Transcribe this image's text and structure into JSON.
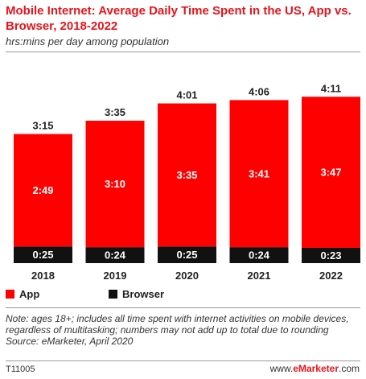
{
  "header": {
    "title": "Mobile Internet: Average Daily Time Spent in the US, App vs. Browser, 2018-2022",
    "subtitle": "hrs:mins per day among population"
  },
  "colors": {
    "app": "#ff0000",
    "browser": "#111111",
    "title": "#e8141b"
  },
  "chart_data": {
    "type": "bar",
    "stacked": true,
    "categories": [
      "2018",
      "2019",
      "2020",
      "2021",
      "2022"
    ],
    "series": [
      {
        "name": "Browser",
        "values": [
          25,
          24,
          25,
          24,
          23
        ],
        "labels": [
          "0:25",
          "0:24",
          "0:25",
          "0:24",
          "0:23"
        ]
      },
      {
        "name": "App",
        "values": [
          169,
          190,
          215,
          221,
          227
        ],
        "labels": [
          "2:49",
          "3:10",
          "3:35",
          "3:41",
          "3:47"
        ]
      }
    ],
    "totals": [
      195,
      215,
      241,
      246,
      251
    ],
    "total_labels": [
      "3:15",
      "3:35",
      "4:01",
      "4:06",
      "4:11"
    ],
    "unit": "minutes",
    "grid": false,
    "legend_position": "bottom-left"
  },
  "legend": {
    "app_label": "App",
    "browser_label": "Browser"
  },
  "footer": {
    "note": "Note: ages 18+; includes all time spent with internet activities on mobile devices, regardless of multitasking; numbers may not add up to total due to rounding",
    "source": "Source: eMarketer, April 2020",
    "chart_id": "T11005",
    "brand_prefix": "www.",
    "brand_name": "eMarketer",
    "brand_suffix": ".com"
  }
}
